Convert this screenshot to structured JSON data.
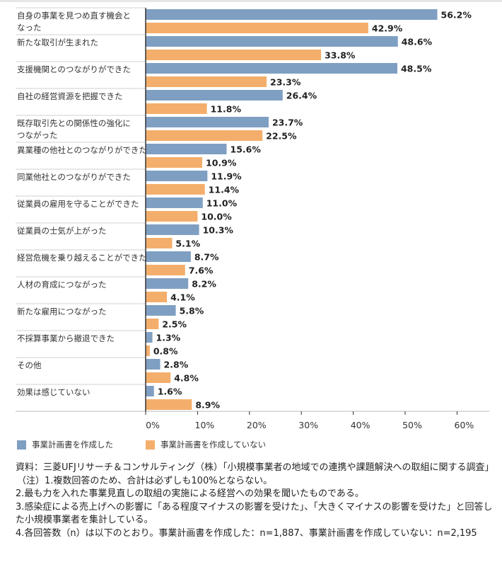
{
  "chart_data": {
    "type": "bar",
    "orientation": "horizontal",
    "categories": [
      "自身の事業を見つめ直す機会となった",
      "新たな取引が生まれた",
      "支援機関とのつながりができた",
      "自社の経営資源を把握できた",
      "既存取引先との関係性の強化につながった",
      "異業種の他社とのつながりができた",
      "同業他社とのつながりができた",
      "従業員の雇用を守ることができた",
      "従業員の士気が上がった",
      "経営危機を乗り越えることができた",
      "人材の育成につながった",
      "新たな雇用につながった",
      "不採算事業から撤退できた",
      "その他",
      "効果は感じていない"
    ],
    "category_lines": [
      [
        "自身の事業を見つめ直す機会と",
        "なった"
      ],
      [
        "新たな取引が生まれた"
      ],
      [
        "支援機関とのつながりができた"
      ],
      [
        "自社の経営資源を把握できた"
      ],
      [
        "既存取引先との関係性の強化に",
        "つながった"
      ],
      [
        "異業種の他社とのつながりができた"
      ],
      [
        "同業他社とのつながりができた"
      ],
      [
        "従業員の雇用を守ることができた"
      ],
      [
        "従業員の士気が上がった"
      ],
      [
        "経営危機を乗り越えることができた"
      ],
      [
        "人材の育成につながった"
      ],
      [
        "新たな雇用につながった"
      ],
      [
        "不採算事業から撤退できた"
      ],
      [
        "その他"
      ],
      [
        "効果は感じていない"
      ]
    ],
    "series": [
      {
        "name": "事業計画書を作成した",
        "color": "#7f9fc2",
        "values": [
          56.2,
          48.6,
          48.5,
          26.4,
          23.7,
          15.6,
          11.9,
          11.0,
          10.3,
          8.7,
          8.2,
          5.8,
          1.3,
          2.8,
          1.6
        ]
      },
      {
        "name": "事業計画書を作成していない",
        "color": "#f4ae6b",
        "values": [
          42.9,
          33.8,
          23.3,
          11.8,
          22.5,
          10.9,
          11.4,
          10.0,
          5.1,
          7.6,
          4.1,
          2.5,
          0.8,
          4.8,
          8.9
        ]
      }
    ],
    "xlim": [
      0,
      60
    ],
    "xticks": [
      0,
      10,
      20,
      30,
      40,
      50,
      60
    ],
    "tick_suffix": "%",
    "value_suffix": "%",
    "legend_position": "bottom-left",
    "grid": false
  },
  "notes": [
    "資料：三菱UFJリサーチ＆コンサルティング（株）「小規模事業者の地域での連携や課題解決への取組に関する調査」",
    "（注）1.複数回答のため、合計は必ずしも100%とならない。",
    "2.最も力を入れた事業見直しの取組の実施による経営への効果を聞いたものである。",
    "3.感染症による売上げへの影響に「ある程度マイナスの影響を受けた」、「大きくマイナスの影響を受けた」と回答した小規模事業者を集計している。",
    "4.各回答数（n）は以下のとおり。事業計画書を作成した：n=1,887、事業計画書を作成していない：n=2,195"
  ]
}
